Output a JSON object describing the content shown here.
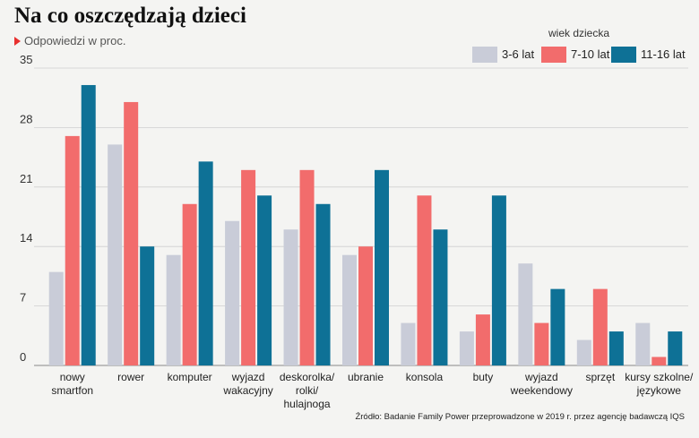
{
  "header": {
    "title": "Na co oszczędzają dzieci",
    "subtitle": "Odpowiedzi w proc."
  },
  "legend": {
    "title": "wiek dziecka"
  },
  "source": "Źródło: Badanie Family Power przeprowadzone w 2019 r. przez agencję badawczą IQS",
  "chart_data": {
    "type": "bar",
    "title": "Na co oszczędzają dzieci",
    "subtitle": "Odpowiedzi w proc.",
    "xlabel": "",
    "ylabel": "",
    "ylim": [
      0,
      35
    ],
    "yticks": [
      0,
      7,
      14,
      21,
      28,
      35
    ],
    "grid": true,
    "legend_position": "top-right",
    "categories": [
      [
        "nowy",
        "smartfon"
      ],
      [
        "rower"
      ],
      [
        "komputer"
      ],
      [
        "wyjazd",
        "wakacyjny"
      ],
      [
        "deskorolka/",
        "rolki/",
        "hulajnoga"
      ],
      [
        "ubranie"
      ],
      [
        "konsola"
      ],
      [
        "buty"
      ],
      [
        "wyjazd",
        "weekendowy"
      ],
      [
        "sprzęt"
      ],
      [
        "kursy szkolne/",
        "językowe"
      ]
    ],
    "series": [
      {
        "name": "3-6 lat",
        "color": "#c9ccd8",
        "values": [
          11,
          26,
          13,
          17,
          16,
          13,
          5,
          4,
          12,
          3,
          5
        ]
      },
      {
        "name": "7-10 lat",
        "color": "#f26c6c",
        "values": [
          27,
          31,
          19,
          23,
          23,
          14,
          20,
          6,
          5,
          9,
          1
        ]
      },
      {
        "name": "11-16 lat",
        "color": "#0e7196",
        "values": [
          33,
          14,
          24,
          20,
          19,
          23,
          16,
          20,
          9,
          4,
          4
        ]
      }
    ]
  }
}
